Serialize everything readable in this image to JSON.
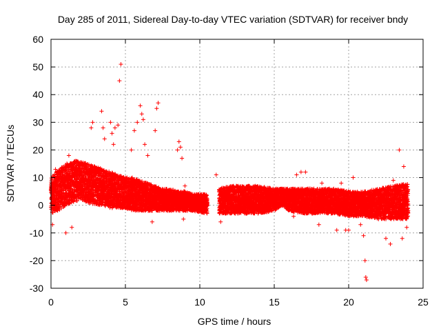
{
  "chart_data": {
    "type": "scatter",
    "title": "Day 285 of 2011, Sidereal Day-to-day VTEC variation (SDTVAR) for receiver bndy",
    "xlabel": "GPS time / hours",
    "ylabel": "SDTVAR / TECUs",
    "xlim": [
      0,
      25
    ],
    "ylim": [
      -30,
      60
    ],
    "xticks": [
      0,
      5,
      10,
      15,
      20,
      25
    ],
    "yticks": [
      -30,
      -20,
      -10,
      0,
      10,
      20,
      30,
      40,
      50,
      60
    ],
    "grid": true,
    "marker": "+",
    "color": "#ff0000",
    "series": [
      {
        "name": "SDTVAR",
        "segments": [
          {
            "x_start": 0.0,
            "x_end": 10.5,
            "envelope": [
              [
                0.0,
                -3,
                10
              ],
              [
                0.5,
                -2,
                13
              ],
              [
                1.0,
                0,
                15
              ],
              [
                1.5,
                1,
                16
              ],
              [
                2.0,
                2,
                16
              ],
              [
                2.5,
                1,
                15
              ],
              [
                3.0,
                0,
                14
              ],
              [
                3.5,
                0,
                13
              ],
              [
                4.0,
                -1,
                12
              ],
              [
                4.5,
                -1,
                11
              ],
              [
                5.0,
                -1,
                10
              ],
              [
                5.5,
                -2,
                10
              ],
              [
                6.0,
                -2,
                9
              ],
              [
                6.5,
                -2,
                8
              ],
              [
                7.0,
                -2,
                7
              ],
              [
                7.5,
                -2,
                6
              ],
              [
                8.0,
                -2,
                6
              ],
              [
                8.5,
                -2,
                5
              ],
              [
                9.0,
                -2,
                5
              ],
              [
                9.5,
                -2,
                4
              ],
              [
                10.5,
                -3,
                4
              ]
            ]
          },
          {
            "x_start": 11.3,
            "x_end": 24.0,
            "envelope": [
              [
                11.3,
                -3,
                6
              ],
              [
                12.0,
                -3,
                7
              ],
              [
                13.0,
                -3,
                7
              ],
              [
                14.0,
                -3,
                7
              ],
              [
                15.0,
                -2,
                6
              ],
              [
                15.5,
                0,
                6
              ],
              [
                16.0,
                -2,
                6
              ],
              [
                17.0,
                -3,
                6
              ],
              [
                18.0,
                -3,
                6
              ],
              [
                19.0,
                -3,
                6
              ],
              [
                20.0,
                -4,
                5
              ],
              [
                21.0,
                -4,
                5
              ],
              [
                22.0,
                -5,
                6
              ],
              [
                23.0,
                -5,
                7
              ],
              [
                24.0,
                -5,
                8
              ]
            ]
          }
        ],
        "spikes": [
          {
            "x": 0.1,
            "y": -7
          },
          {
            "x": 0.3,
            "y": 13
          },
          {
            "x": 1.0,
            "y": -10
          },
          {
            "x": 1.2,
            "y": 18
          },
          {
            "x": 1.4,
            "y": -8
          },
          {
            "x": 2.7,
            "y": 28
          },
          {
            "x": 2.8,
            "y": 30
          },
          {
            "x": 3.4,
            "y": 34
          },
          {
            "x": 3.5,
            "y": 28
          },
          {
            "x": 3.6,
            "y": 24
          },
          {
            "x": 4.0,
            "y": 30
          },
          {
            "x": 4.1,
            "y": 26
          },
          {
            "x": 4.2,
            "y": 22
          },
          {
            "x": 4.3,
            "y": 28
          },
          {
            "x": 4.5,
            "y": 29
          },
          {
            "x": 4.6,
            "y": 45
          },
          {
            "x": 4.7,
            "y": 51
          },
          {
            "x": 5.4,
            "y": 20
          },
          {
            "x": 5.6,
            "y": 27
          },
          {
            "x": 5.8,
            "y": 30
          },
          {
            "x": 6.0,
            "y": 36
          },
          {
            "x": 6.1,
            "y": 33
          },
          {
            "x": 6.2,
            "y": 31
          },
          {
            "x": 6.3,
            "y": 22
          },
          {
            "x": 6.5,
            "y": 18
          },
          {
            "x": 6.8,
            "y": -6
          },
          {
            "x": 7.0,
            "y": 27
          },
          {
            "x": 7.1,
            "y": 35
          },
          {
            "x": 7.2,
            "y": 37
          },
          {
            "x": 8.5,
            "y": 20
          },
          {
            "x": 8.6,
            "y": 23
          },
          {
            "x": 8.7,
            "y": 21
          },
          {
            "x": 8.8,
            "y": 17
          },
          {
            "x": 9.0,
            "y": 7
          },
          {
            "x": 8.9,
            "y": -5
          },
          {
            "x": 11.1,
            "y": 11
          },
          {
            "x": 11.4,
            "y": -6
          },
          {
            "x": 16.3,
            "y": -4
          },
          {
            "x": 16.5,
            "y": 11
          },
          {
            "x": 16.8,
            "y": 12
          },
          {
            "x": 17.1,
            "y": 12
          },
          {
            "x": 18.0,
            "y": -7
          },
          {
            "x": 18.2,
            "y": 8
          },
          {
            "x": 19.2,
            "y": -9
          },
          {
            "x": 19.5,
            "y": 8
          },
          {
            "x": 19.8,
            "y": -9
          },
          {
            "x": 20.0,
            "y": -9
          },
          {
            "x": 20.3,
            "y": 10
          },
          {
            "x": 20.8,
            "y": -7
          },
          {
            "x": 21.0,
            "y": -11
          },
          {
            "x": 21.1,
            "y": -20
          },
          {
            "x": 21.15,
            "y": -26
          },
          {
            "x": 21.2,
            "y": -27
          },
          {
            "x": 22.5,
            "y": -12
          },
          {
            "x": 22.8,
            "y": -14
          },
          {
            "x": 23.0,
            "y": 9
          },
          {
            "x": 23.4,
            "y": 20
          },
          {
            "x": 23.6,
            "y": -12
          },
          {
            "x": 23.7,
            "y": 14
          },
          {
            "x": 23.9,
            "y": -8
          }
        ]
      }
    ]
  }
}
